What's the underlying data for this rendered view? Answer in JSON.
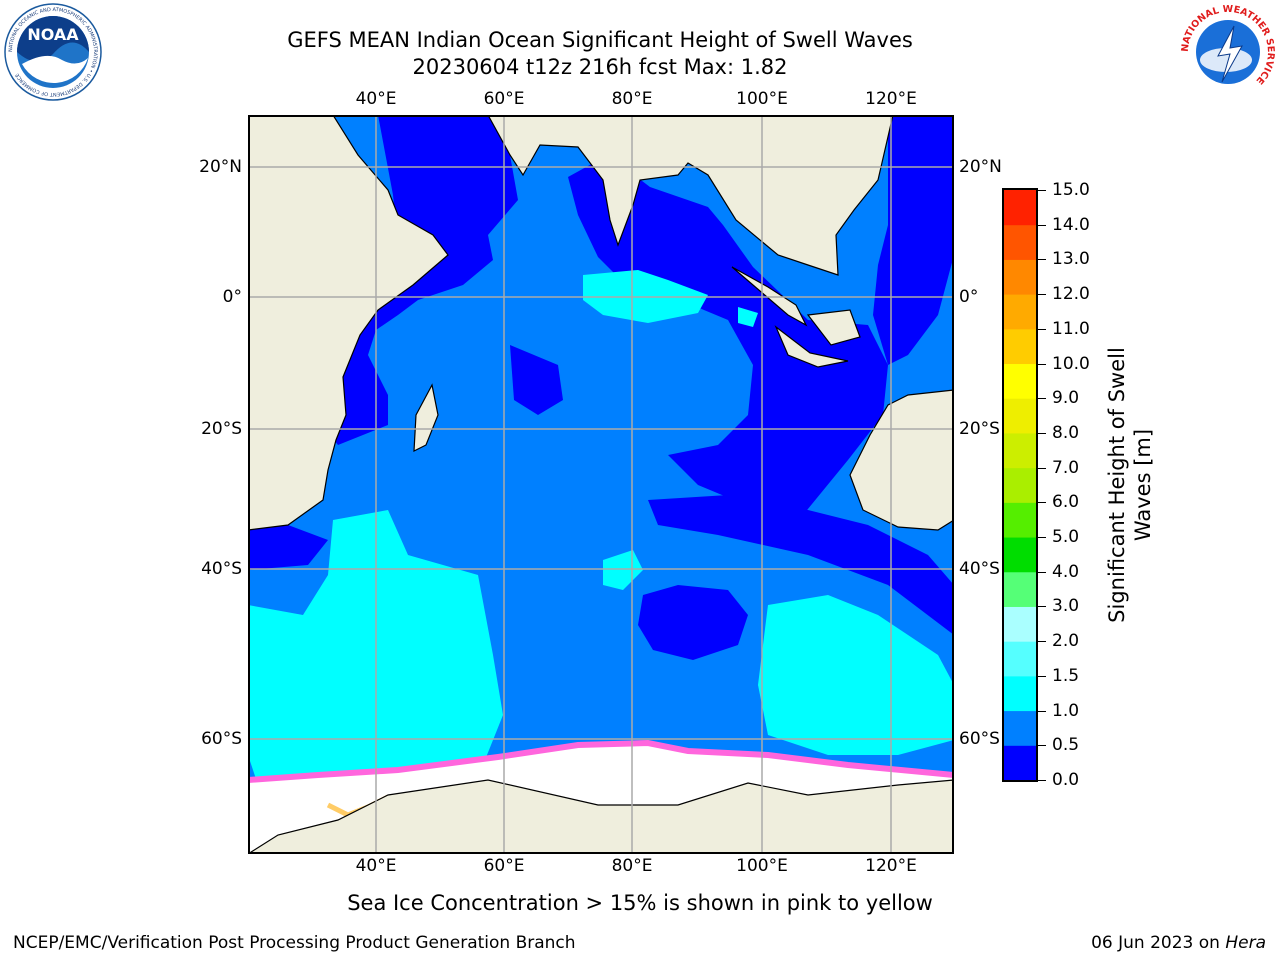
{
  "header": {
    "title_line1": "GEFS MEAN Indian Ocean Significant Height of Swell Waves",
    "title_line2": "20230604 t12z 216h fcst   Max: 1.82"
  },
  "logos": {
    "left": "NOAA",
    "left_ring_text": "NATIONAL OCEANIC AND ATMOSPHERIC ADMINISTRATION • U.S. DEPARTMENT OF COMMERCE",
    "right_ring_text": "NATIONAL WEATHER SERVICE"
  },
  "map": {
    "lon_ticks": [
      "40°E",
      "60°E",
      "80°E",
      "100°E",
      "120°E"
    ],
    "lat_ticks": [
      "20°N",
      "0°",
      "20°S",
      "40°S",
      "60°S"
    ],
    "colors": {
      "land": "#efeedd",
      "ocean_low": "#0000ff",
      "ocean_mid": "#0080ff",
      "ocean_high": "#00ffff",
      "ice": "#ffffff",
      "ice_edge": "#ff66dd",
      "grid": "#aaaaaa"
    }
  },
  "colorbar": {
    "label": "Significant Height of Swell Waves [m]",
    "ticks": [
      "15.0",
      "14.0",
      "13.0",
      "12.0",
      "11.0",
      "10.0",
      "9.0",
      "8.0",
      "7.0",
      "6.0",
      "5.0",
      "4.0",
      "3.0",
      "2.0",
      "1.5",
      "1.0",
      "0.5",
      "0.0"
    ],
    "colors": [
      "#0000ff",
      "#0080ff",
      "#00ffff",
      "#55ffff",
      "#aaffff",
      "#55ff77",
      "#00dd00",
      "#55ee00",
      "#aaee00",
      "#ccee00",
      "#eeee00",
      "#ffff00",
      "#ffcc00",
      "#ffaa00",
      "#ff8800",
      "#ff5500",
      "#ff2200"
    ]
  },
  "footnote": "Sea Ice Concentration > 15% is shown in pink to yellow",
  "footer": {
    "left": "NCEP/EMC/Verification Post Processing Product Generation Branch",
    "right_date": "06 Jun 2023 on ",
    "right_host": "Hera"
  }
}
